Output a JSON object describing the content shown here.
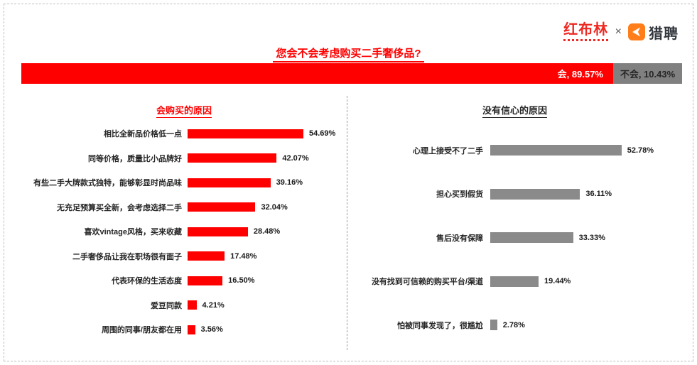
{
  "brand": {
    "hongbulin": "红布林",
    "separator": "×",
    "liepin": "猎聘",
    "hongbulin_color": "#ee2822",
    "liepin_icon_color": "#ff7e1a"
  },
  "title": "您会不会考虑购买二手奢侈品?",
  "accent_red": "#fe0000",
  "bar_gray": "#8a8a8a",
  "chart_data": [
    {
      "type": "bar",
      "orientation": "horizontal",
      "stacked": true,
      "title": "您会不会考虑购买二手奢侈品?",
      "categories": [
        "会",
        "不会"
      ],
      "values": [
        89.57,
        10.43
      ],
      "value_labels": [
        "会, 89.57%",
        "不会, 10.43%"
      ],
      "colors": [
        "#fe0000",
        "#808080"
      ],
      "xlim": [
        0,
        100
      ]
    },
    {
      "type": "bar",
      "orientation": "horizontal",
      "title": "会购买的原因",
      "categories": [
        "相比全新品价格低一点",
        "同等价格，质量比小品牌好",
        "有些二手大牌款式独特，能够彰显时尚品味",
        "无充足预算买全新，会考虑选择二手",
        "喜欢vintage风格，买来收藏",
        "二手奢侈品让我在职场很有面子",
        "代表环保的生活态度",
        "爱豆同款",
        "周围的同事/朋友都在用"
      ],
      "values": [
        54.69,
        42.07,
        39.16,
        32.04,
        28.48,
        17.48,
        16.5,
        4.21,
        3.56
      ],
      "value_labels": [
        "54.69%",
        "42.07%",
        "39.16%",
        "32.04%",
        "28.48%",
        "17.48%",
        "16.50%",
        "4.21%",
        "3.56%"
      ],
      "color": "#fe0000",
      "grid": false,
      "legend": false
    },
    {
      "type": "bar",
      "orientation": "horizontal",
      "title": "没有信心的原因",
      "categories": [
        "心理上接受不了二手",
        "担心买到假货",
        "售后没有保障",
        "没有找到可信赖的购买平台/渠道",
        "怕被同事发现了，很尴尬"
      ],
      "values": [
        52.78,
        36.11,
        33.33,
        19.44,
        2.78
      ],
      "value_labels": [
        "52.78%",
        "36.11%",
        "33.33%",
        "19.44%",
        "2.78%"
      ],
      "color": "#8a8a8a",
      "grid": false,
      "legend": false
    }
  ]
}
